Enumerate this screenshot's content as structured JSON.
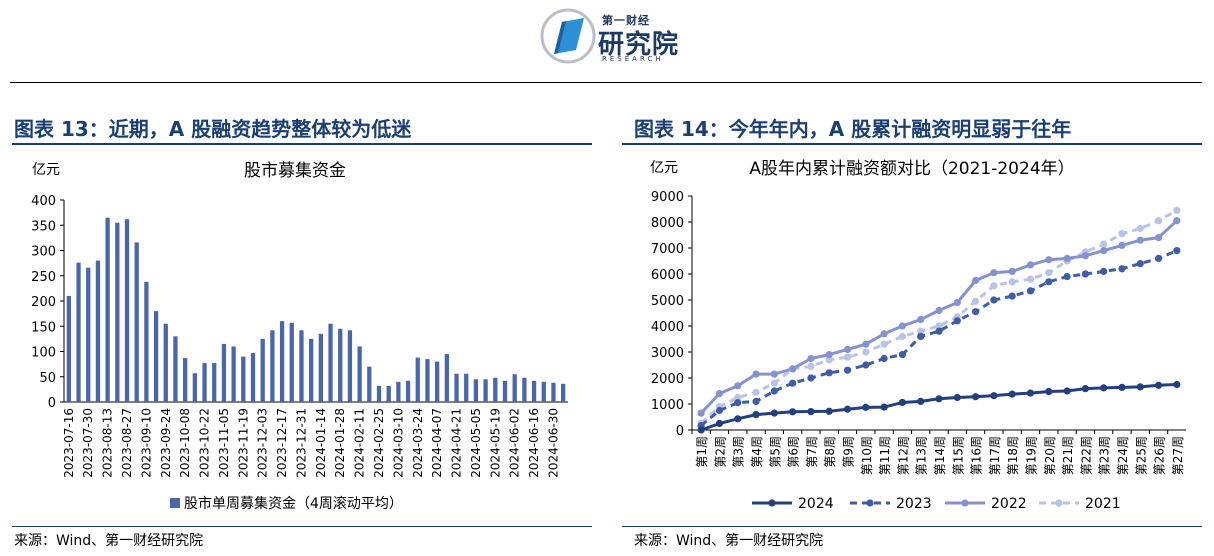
{
  "logo": {
    "top_text": "第一财经",
    "main_text": "研究院",
    "sub_text": "RESEARCH"
  },
  "left_panel": {
    "title": "图表 13：近期，A 股融资趋势整体较为低迷",
    "source": "来源：Wind、第一财经研究院"
  },
  "right_panel": {
    "title": "图表 14：今年年内，A 股累计融资明显弱于往年",
    "source": "来源：Wind、第一财经研究院"
  },
  "colors": {
    "bar": "#4a66ab",
    "title": "#1c3f73",
    "s2024": "#233f7e",
    "s2023": "#3f5ca6",
    "s2022": "#8493cf",
    "s2021": "#b8c3e6"
  },
  "chart_data": [
    {
      "type": "bar",
      "title": "股市募集资金",
      "unit": "亿元",
      "ylim": [
        0,
        400
      ],
      "yticks": [
        0,
        50,
        100,
        150,
        200,
        250,
        300,
        350,
        400
      ],
      "grid": false,
      "legend": {
        "position": "bottom",
        "label": "股市单周募集资金（4周滚动平均）"
      },
      "tick_labels": [
        "2023-07-16",
        "2023-07-30",
        "2023-08-13",
        "2023-08-27",
        "2023-09-10",
        "2023-09-24",
        "2023-10-08",
        "2023-10-22",
        "2023-11-05",
        "2023-11-19",
        "2023-12-03",
        "2023-12-17",
        "2023-12-31",
        "2024-01-14",
        "2024-01-28",
        "2024-02-11",
        "2024-02-25",
        "2024-03-10",
        "2024-03-24",
        "2024-04-07",
        "2024-04-21",
        "2024-05-05",
        "2024-05-19",
        "2024-06-02",
        "2024-06-16",
        "2024-06-30"
      ],
      "values": [
        210,
        276,
        266,
        280,
        365,
        355,
        362,
        316,
        238,
        180,
        155,
        130,
        87,
        57,
        77,
        77,
        115,
        110,
        90,
        97,
        125,
        142,
        160,
        157,
        142,
        125,
        135,
        155,
        145,
        142,
        110,
        70,
        32,
        32,
        40,
        42,
        88,
        85,
        80,
        95,
        56,
        56,
        45,
        45,
        48,
        42,
        55,
        48,
        42,
        40,
        38,
        36
      ]
    },
    {
      "type": "line",
      "title": "A股年内累计融资额对比（2021-2024年）",
      "unit": "亿元",
      "ylim": [
        0,
        9000
      ],
      "yticks": [
        0,
        1000,
        2000,
        3000,
        4000,
        5000,
        6000,
        7000,
        8000,
        9000
      ],
      "grid": false,
      "legend": {
        "position": "bottom"
      },
      "x": [
        "第1周",
        "第2周",
        "第3周",
        "第4周",
        "第5周",
        "第6周",
        "第7周",
        "第8周",
        "第9周",
        "第10周",
        "第11周",
        "第12周",
        "第13周",
        "第14周",
        "第15周",
        "第16周",
        "第17周",
        "第18周",
        "第19周",
        "第20周",
        "第21周",
        "第22周",
        "第23周",
        "第24周",
        "第25周",
        "第26周",
        "第27周"
      ],
      "series": [
        {
          "name": "2024",
          "values": [
            0,
            250,
            430,
            590,
            650,
            700,
            710,
            720,
            800,
            870,
            880,
            1060,
            1100,
            1200,
            1250,
            1280,
            1320,
            1380,
            1420,
            1480,
            1500,
            1590,
            1620,
            1640,
            1660,
            1720,
            1750
          ]
        },
        {
          "name": "2023",
          "values": [
            170,
            750,
            1050,
            1100,
            1500,
            1800,
            2000,
            2200,
            2300,
            2500,
            2750,
            2900,
            3600,
            3800,
            4200,
            4550,
            5000,
            5150,
            5350,
            5700,
            5900,
            6000,
            6100,
            6200,
            6400,
            6600,
            6900
          ]
        },
        {
          "name": "2022",
          "values": [
            650,
            1400,
            1700,
            2150,
            2150,
            2350,
            2750,
            2900,
            3100,
            3300,
            3700,
            4000,
            4250,
            4600,
            4900,
            5750,
            6050,
            6100,
            6350,
            6550,
            6600,
            6700,
            6900,
            7100,
            7300,
            7400,
            8050
          ]
        },
        {
          "name": "2021",
          "values": [
            250,
            900,
            1250,
            1450,
            1800,
            2350,
            2450,
            2700,
            2800,
            3000,
            3300,
            3600,
            3800,
            4000,
            4350,
            4950,
            5550,
            5700,
            5800,
            6050,
            6500,
            6850,
            7150,
            7550,
            7750,
            8050,
            8450
          ]
        }
      ]
    }
  ]
}
